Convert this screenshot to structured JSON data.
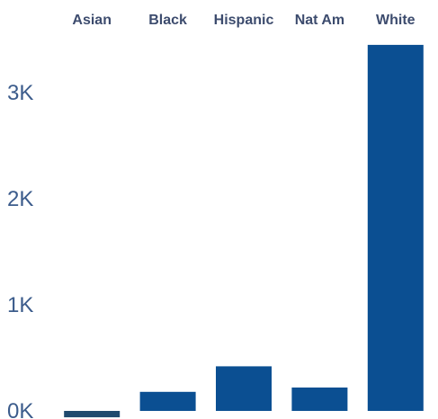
{
  "chart_data": {
    "type": "bar",
    "categories": [
      "Asian",
      "Black",
      "Hispanic",
      "Nat Am",
      "White"
    ],
    "values": [
      -60,
      180,
      420,
      220,
      3450
    ],
    "y_ticks": [
      {
        "value": 0,
        "label": "0K"
      },
      {
        "value": 1000,
        "label": "1K"
      },
      {
        "value": 2000,
        "label": "2K"
      },
      {
        "value": 3000,
        "label": "3K"
      }
    ],
    "ylim": [
      -70,
      3550
    ],
    "grid": false,
    "legend": "none",
    "category_axis_position": "top",
    "colors": {
      "bar": "#0b4f92",
      "bar_dark": "#1f4a6e",
      "tick_text": "#3c5c8c",
      "category_text": "#3d4c6e"
    }
  }
}
